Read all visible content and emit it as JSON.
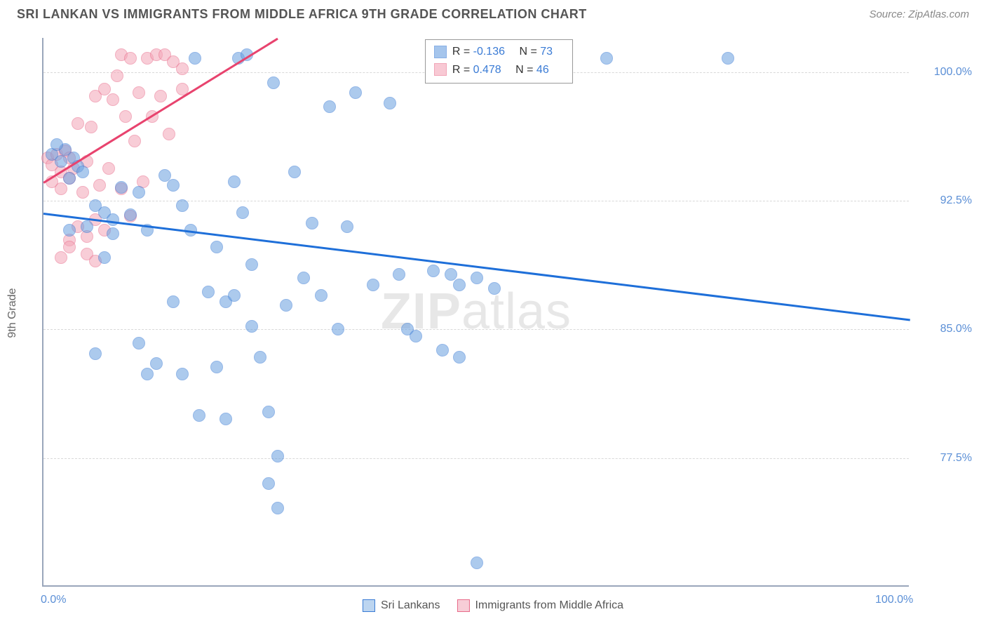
{
  "title": "SRI LANKAN VS IMMIGRANTS FROM MIDDLE AFRICA 9TH GRADE CORRELATION CHART",
  "source": "Source: ZipAtlas.com",
  "ylabel": "9th Grade",
  "watermark_bold": "ZIP",
  "watermark_rest": "atlas",
  "chart": {
    "type": "scatter",
    "background_color": "#ffffff",
    "grid_color": "#d8d8d8",
    "axis_color": "#9aa6bb",
    "xlim": [
      0,
      100
    ],
    "ylim": [
      70,
      102
    ],
    "x_ticks": [
      {
        "v": 0,
        "label": "0.0%"
      },
      {
        "v": 100,
        "label": "100.0%"
      }
    ],
    "y_ticks": [
      {
        "v": 77.5,
        "label": "77.5%"
      },
      {
        "v": 85.0,
        "label": "85.0%"
      },
      {
        "v": 92.5,
        "label": "92.5%"
      },
      {
        "v": 100.0,
        "label": "100.0%"
      }
    ],
    "marker_radius": 9,
    "marker_opacity": 0.55,
    "marker_border_opacity": 0.9,
    "series": [
      {
        "name": "Sri Lankans",
        "color": "#6aa0e0",
        "border_color": "#3a7bd5",
        "trend_color": "#1e6fd9",
        "trend": {
          "x1": 0,
          "y1": 91.8,
          "x2": 100,
          "y2": 85.6
        },
        "R": "-0.136",
        "N": "73",
        "points": [
          [
            1,
            95.2
          ],
          [
            2,
            94.8
          ],
          [
            2.5,
            95.5
          ],
          [
            3,
            93.8
          ],
          [
            3.5,
            95.0
          ],
          [
            4,
            94.5
          ],
          [
            4.5,
            94.2
          ],
          [
            1.5,
            95.8
          ],
          [
            3,
            90.8
          ],
          [
            5,
            91.0
          ],
          [
            6,
            92.2
          ],
          [
            7,
            91.8
          ],
          [
            8,
            91.4
          ],
          [
            9,
            93.3
          ],
          [
            10,
            91.7
          ],
          [
            11,
            93.0
          ],
          [
            7,
            89.2
          ],
          [
            8,
            90.6
          ],
          [
            12,
            90.8
          ],
          [
            14,
            94.0
          ],
          [
            15,
            93.4
          ],
          [
            16,
            92.2
          ],
          [
            17,
            90.8
          ],
          [
            17.5,
            100.8
          ],
          [
            19,
            87.2
          ],
          [
            20,
            89.8
          ],
          [
            21,
            86.6
          ],
          [
            22,
            93.6
          ],
          [
            22.5,
            100.8
          ],
          [
            23,
            91.8
          ],
          [
            23.5,
            101.0
          ],
          [
            24,
            88.8
          ],
          [
            6,
            83.6
          ],
          [
            11,
            84.2
          ],
          [
            12,
            82.4
          ],
          [
            13,
            83.0
          ],
          [
            15,
            86.6
          ],
          [
            16,
            82.4
          ],
          [
            18,
            80.0
          ],
          [
            20,
            82.8
          ],
          [
            21,
            79.8
          ],
          [
            22,
            87.0
          ],
          [
            24,
            85.2
          ],
          [
            25,
            83.4
          ],
          [
            26,
            80.2
          ],
          [
            26.5,
            99.4
          ],
          [
            27,
            77.6
          ],
          [
            28,
            86.4
          ],
          [
            29,
            94.2
          ],
          [
            30,
            88.0
          ],
          [
            31,
            91.2
          ],
          [
            32,
            87.0
          ],
          [
            33,
            98.0
          ],
          [
            34,
            85.0
          ],
          [
            35,
            91.0
          ],
          [
            36,
            98.8
          ],
          [
            38,
            87.6
          ],
          [
            40,
            98.2
          ],
          [
            41,
            88.2
          ],
          [
            42,
            85.0
          ],
          [
            43,
            84.6
          ],
          [
            45,
            88.4
          ],
          [
            47,
            88.2
          ],
          [
            46,
            83.8
          ],
          [
            48,
            87.6
          ],
          [
            48,
            83.4
          ],
          [
            50,
            88.0
          ],
          [
            52,
            87.4
          ],
          [
            26,
            76.0
          ],
          [
            27,
            74.6
          ],
          [
            65,
            100.8
          ],
          [
            79,
            100.8
          ],
          [
            50,
            71.4
          ]
        ]
      },
      {
        "name": "Immigrants from Middle Africa",
        "color": "#f4a6b8",
        "border_color": "#e86b8a",
        "trend_color": "#e8436e",
        "trend": {
          "x1": 0,
          "y1": 93.6,
          "x2": 27,
          "y2": 102.0
        },
        "R": "0.478",
        "N": "46",
        "points": [
          [
            0.5,
            95.0
          ],
          [
            1,
            94.6
          ],
          [
            1.5,
            95.2
          ],
          [
            2,
            94.2
          ],
          [
            2.5,
            95.4
          ],
          [
            3,
            95.0
          ],
          [
            3.5,
            94.4
          ],
          [
            1,
            93.6
          ],
          [
            2,
            93.2
          ],
          [
            3,
            93.8
          ],
          [
            4,
            97.0
          ],
          [
            4.5,
            93.0
          ],
          [
            5,
            94.8
          ],
          [
            5.5,
            96.8
          ],
          [
            6,
            98.6
          ],
          [
            6.5,
            93.4
          ],
          [
            7,
            99.0
          ],
          [
            7.5,
            94.4
          ],
          [
            8,
            98.4
          ],
          [
            8.5,
            99.8
          ],
          [
            9,
            101.0
          ],
          [
            9.5,
            97.4
          ],
          [
            10,
            100.8
          ],
          [
            10.5,
            96.0
          ],
          [
            11,
            98.8
          ],
          [
            11.5,
            93.6
          ],
          [
            12,
            100.8
          ],
          [
            12.5,
            97.4
          ],
          [
            13,
            101.0
          ],
          [
            13.5,
            98.6
          ],
          [
            14,
            101.0
          ],
          [
            14.5,
            96.4
          ],
          [
            15,
            100.6
          ],
          [
            3,
            90.2
          ],
          [
            4,
            91.0
          ],
          [
            5,
            90.4
          ],
          [
            6,
            91.4
          ],
          [
            7,
            90.8
          ],
          [
            2,
            89.2
          ],
          [
            3,
            89.8
          ],
          [
            5,
            89.4
          ],
          [
            6,
            89.0
          ],
          [
            9,
            93.2
          ],
          [
            10,
            91.6
          ],
          [
            16,
            99.0
          ],
          [
            16,
            100.2
          ]
        ]
      }
    ],
    "legend_top_pos": {
      "left_pct": 44,
      "top_pct": 0
    },
    "legend_labels": {
      "R": "R =",
      "N": "N ="
    },
    "tick_label_color": "#5b8fd6",
    "tick_fontsize": 16,
    "title_color": "#555555",
    "title_fontsize": 18
  },
  "bottom_legend": [
    {
      "label": "Sri Lankans",
      "fill": "#bcd5f0",
      "border": "#3a7bd5"
    },
    {
      "label": "Immigrants from Middle Africa",
      "fill": "#f7cdd7",
      "border": "#e86b8a"
    }
  ]
}
